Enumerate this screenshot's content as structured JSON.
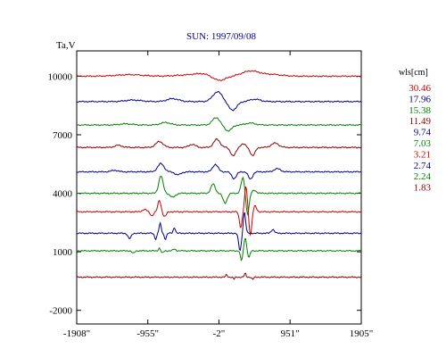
{
  "chart_data": {
    "type": "line",
    "title": "SUN: 1997/09/08",
    "ylabel": "Ta,V",
    "xlabel": "",
    "x_ticks": [
      "-1908\"",
      "-955\"",
      "-2\"",
      "951\"",
      "1905\""
    ],
    "x_tick_values": [
      -1908,
      -955,
      -2,
      951,
      1905
    ],
    "xlim": [
      -1908,
      1905
    ],
    "y_ticks": [
      "10000",
      "7000",
      "4000",
      "1000",
      "-2000"
    ],
    "y_tick_values": [
      10000,
      7000,
      4000,
      1000,
      -2000
    ],
    "ylim": [
      -2700,
      11300
    ],
    "grid": false,
    "legend": {
      "title": "wls[cm]",
      "placement": "right"
    },
    "series": [
      {
        "name": "30.46",
        "color": "#cc0000",
        "baseline": 10000,
        "features": [
          {
            "x": -1200,
            "a": 80,
            "w": 250
          },
          {
            "x": -450,
            "a": 60,
            "w": 200
          },
          {
            "x": -220,
            "a": 120,
            "w": 150
          },
          {
            "x": 0,
            "a": -220,
            "w": 120
          },
          {
            "x": 420,
            "a": 260,
            "w": 160
          },
          {
            "x": 700,
            "a": 90,
            "w": 200
          }
        ]
      },
      {
        "name": "17.96",
        "color": "#00008b",
        "baseline": 8700,
        "features": [
          {
            "x": -1150,
            "a": 80,
            "w": 150
          },
          {
            "x": -620,
            "a": 150,
            "w": 110
          },
          {
            "x": -20,
            "a": 500,
            "w": 90
          },
          {
            "x": 180,
            "a": -440,
            "w": 80
          },
          {
            "x": 480,
            "a": 120,
            "w": 100
          }
        ]
      },
      {
        "name": "15.38",
        "color": "#008000",
        "baseline": 7500,
        "features": [
          {
            "x": -1250,
            "a": 60,
            "w": 120
          },
          {
            "x": -720,
            "a": 130,
            "w": 90
          },
          {
            "x": -40,
            "a": 380,
            "w": 70
          },
          {
            "x": 120,
            "a": -300,
            "w": 70
          },
          {
            "x": 420,
            "a": 100,
            "w": 90
          }
        ]
      },
      {
        "name": "11.49",
        "color": "#8b0000",
        "baseline": 6350,
        "features": [
          {
            "x": -1350,
            "a": 110,
            "w": 70
          },
          {
            "x": -800,
            "a": 300,
            "w": 70
          },
          {
            "x": -360,
            "a": 160,
            "w": 60
          },
          {
            "x": -30,
            "a": 420,
            "w": 60
          },
          {
            "x": 190,
            "a": -430,
            "w": 50
          },
          {
            "x": 320,
            "a": 180,
            "w": 50
          },
          {
            "x": 450,
            "a": -420,
            "w": 45
          },
          {
            "x": 750,
            "a": 220,
            "w": 70
          }
        ]
      },
      {
        "name": "9.74",
        "color": "#00008b",
        "baseline": 5100,
        "features": [
          {
            "x": -1400,
            "a": 80,
            "w": 60
          },
          {
            "x": -780,
            "a": 420,
            "w": 60
          },
          {
            "x": -550,
            "a": -150,
            "w": 60
          },
          {
            "x": -50,
            "a": 380,
            "w": 50
          },
          {
            "x": 200,
            "a": -350,
            "w": 45
          },
          {
            "x": 420,
            "a": -380,
            "w": 40
          },
          {
            "x": 780,
            "a": 160,
            "w": 60
          }
        ]
      },
      {
        "name": "7.03",
        "color": "#008000",
        "baseline": 4000,
        "features": [
          {
            "x": -780,
            "a": 900,
            "w": 40
          },
          {
            "x": -620,
            "a": -200,
            "w": 50
          },
          {
            "x": -80,
            "a": 480,
            "w": 40
          },
          {
            "x": 80,
            "a": -500,
            "w": 40
          },
          {
            "x": 320,
            "a": 800,
            "w": 35
          },
          {
            "x": 380,
            "a": -1100,
            "w": 30
          },
          {
            "x": 470,
            "a": 150,
            "w": 40
          }
        ]
      },
      {
        "name": "3.21",
        "color": "#cc0000",
        "baseline": 3050,
        "features": [
          {
            "x": -1000,
            "a": 120,
            "w": 40
          },
          {
            "x": -900,
            "a": -200,
            "w": 30
          },
          {
            "x": -800,
            "a": 600,
            "w": 28
          },
          {
            "x": -730,
            "a": -250,
            "w": 30
          },
          {
            "x": 290,
            "a": -800,
            "w": 25
          },
          {
            "x": 360,
            "a": 1300,
            "w": 25
          },
          {
            "x": 420,
            "a": -1200,
            "w": 25
          },
          {
            "x": 480,
            "a": 300,
            "w": 30
          }
        ]
      },
      {
        "name": "2.74",
        "color": "#00008b",
        "baseline": 1950,
        "features": [
          {
            "x": -1200,
            "a": -280,
            "w": 30
          },
          {
            "x": -850,
            "a": -300,
            "w": 20
          },
          {
            "x": -790,
            "a": 500,
            "w": 20
          },
          {
            "x": -720,
            "a": -300,
            "w": 20
          },
          {
            "x": -600,
            "a": 300,
            "w": 20
          },
          {
            "x": 280,
            "a": -900,
            "w": 25
          },
          {
            "x": 340,
            "a": 1100,
            "w": 22
          },
          {
            "x": 720,
            "a": 200,
            "w": 30
          }
        ]
      },
      {
        "name": "2.24",
        "color": "#008000",
        "baseline": 1050,
        "features": [
          {
            "x": -1150,
            "a": -130,
            "w": 25
          },
          {
            "x": -800,
            "a": 130,
            "w": 18
          },
          {
            "x": -760,
            "a": -120,
            "w": 18
          },
          {
            "x": -600,
            "a": 90,
            "w": 25
          },
          {
            "x": 300,
            "a": -500,
            "w": 20
          },
          {
            "x": 350,
            "a": 700,
            "w": 20
          },
          {
            "x": 400,
            "a": -350,
            "w": 20
          }
        ]
      },
      {
        "name": "1.83",
        "color": "#8b0000",
        "baseline": -300,
        "features": [
          {
            "x": 100,
            "a": 130,
            "w": 15
          },
          {
            "x": 200,
            "a": -100,
            "w": 15
          },
          {
            "x": 350,
            "a": 200,
            "w": 15
          },
          {
            "x": 450,
            "a": -120,
            "w": 15
          }
        ]
      }
    ]
  }
}
